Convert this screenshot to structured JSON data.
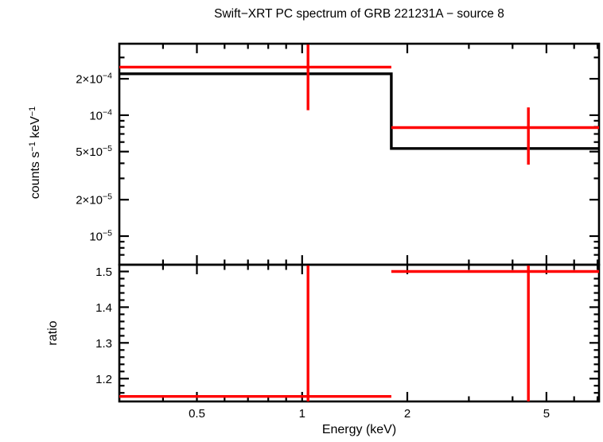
{
  "title": "Swift−XRT PC spectrum of GRB 221231A − source 8",
  "colors": {
    "data_red": "#ff0000",
    "model_black": "#000000",
    "axis_black": "#000000",
    "background": "#ffffff"
  },
  "chart_data": {
    "type": "line",
    "title": "Swift−XRT PC spectrum of GRB 221231A − source 8",
    "xlabel": "Energy (keV)",
    "x_axis": {
      "scale": "log",
      "range_kev": [
        0.3,
        7.07
      ],
      "major_ticks": [
        0.5,
        1,
        2,
        5
      ],
      "major_tick_labels": [
        "0.5",
        "1",
        "2",
        "5"
      ],
      "minor_ticks": [
        0.4,
        0.6,
        0.7,
        0.8,
        0.9,
        3,
        4,
        6,
        7
      ]
    },
    "panels": [
      {
        "name": "spectrum",
        "ylabel": "counts s⁻¹ keV⁻¹",
        "y_axis": {
          "scale": "log",
          "range": [
            5.8e-06,
            0.00039
          ],
          "major_ticks": [
            1e-05,
            2e-05,
            5e-05,
            0.0001,
            0.0002
          ],
          "major_tick_labels": [
            "10⁻⁵",
            "2×10⁻⁵",
            "5×10⁻⁵",
            "10⁻⁴",
            "2×10⁻⁴"
          ],
          "minor_ticks": [
            7e-06,
            8e-06,
            9e-06,
            3e-05,
            4e-05,
            6e-05,
            7e-05,
            8e-05,
            9e-05,
            0.0003
          ]
        },
        "model": {
          "color": "#000000",
          "steps": [
            {
              "e_min_kev": 0.3,
              "e_max_kev": 1.8,
              "value": 0.00022
            },
            {
              "e_min_kev": 1.8,
              "e_max_kev": 7.07,
              "value": 5.3e-05
            }
          ]
        },
        "data": {
          "color": "#ff0000",
          "points": [
            {
              "e_min_kev": 0.3,
              "e_max_kev": 1.8,
              "e_center_kev": 1.04,
              "value": 0.00025,
              "err_low": 0.00011,
              "err_high": 0.00039,
              "err_high_clipped": true
            },
            {
              "e_min_kev": 1.8,
              "e_max_kev": 7.07,
              "e_center_kev": 4.44,
              "value": 7.9e-05,
              "err_low": 3.9e-05,
              "err_high": 0.000116,
              "err_high_clipped": false
            }
          ]
        }
      },
      {
        "name": "ratio",
        "ylabel": "ratio",
        "y_axis": {
          "scale": "linear",
          "range": [
            1.136,
            1.519
          ],
          "major_ticks": [
            1.2,
            1.3,
            1.4,
            1.5
          ],
          "major_tick_labels": [
            "1.2",
            "1.3",
            "1.4",
            "1.5"
          ],
          "minor_tick_step": 0.02
        },
        "data": {
          "color": "#ff0000",
          "points": [
            {
              "e_min_kev": 0.3,
              "e_max_kev": 1.8,
              "e_center_kev": 1.04,
              "value": 1.15,
              "err_low_clipped": true,
              "err_high_clipped": true
            },
            {
              "e_min_kev": 1.8,
              "e_max_kev": 7.07,
              "e_center_kev": 4.44,
              "value": 1.5,
              "err_low_clipped": true,
              "err_high_clipped": true
            }
          ]
        }
      }
    ]
  }
}
